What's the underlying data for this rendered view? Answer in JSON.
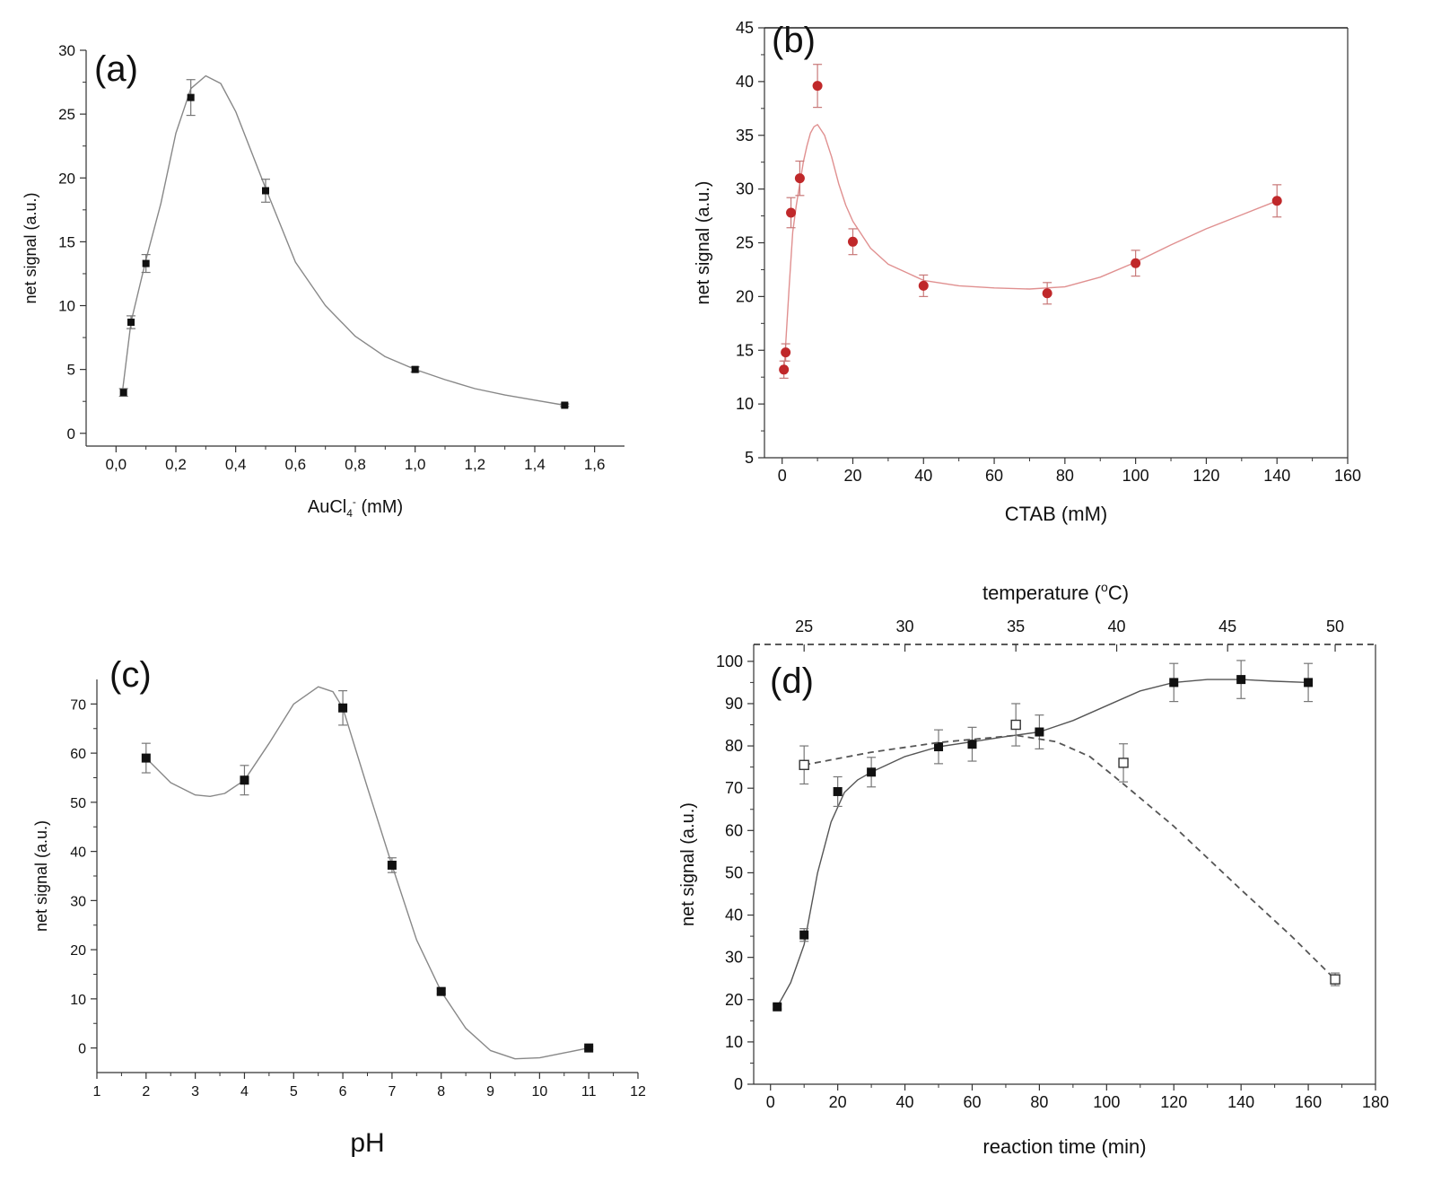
{
  "chart_data": [
    {
      "type": "scatter",
      "panel_label": "(a)",
      "xlabel": "AuCl",
      "xlabel_sub": "4",
      "xlabel_sup": "-",
      "xlabel_unit": " (mM)",
      "ylabel": "net signal (a.u.)",
      "xlim": [
        -0.1,
        1.7
      ],
      "ylim": [
        -1,
        30
      ],
      "x_ticks": [
        0.0,
        0.2,
        0.4,
        0.6,
        0.8,
        1.0,
        1.2,
        1.4,
        1.6
      ],
      "x_tick_labels": [
        "0,0",
        "0,2",
        "0,4",
        "0,6",
        "0,8",
        "1,0",
        "1,2",
        "1,4",
        "1,6"
      ],
      "y_ticks": [
        0,
        5,
        10,
        15,
        20,
        25,
        30
      ],
      "y_tick_labels": [
        "0",
        "5",
        "10",
        "15",
        "20",
        "25",
        "30"
      ],
      "colors": {
        "marker": "#111111",
        "line": "#888888",
        "error": "#777777"
      },
      "series": [
        {
          "marker": "square",
          "x": [
            0.025,
            0.05,
            0.1,
            0.25,
            0.5,
            1.0,
            1.5
          ],
          "y": [
            3.2,
            8.7,
            13.3,
            26.3,
            19.0,
            5.0,
            2.2
          ],
          "err": [
            0.3,
            0.5,
            0.7,
            1.4,
            0.9,
            0.2,
            0.1
          ],
          "fit_x": [
            0.02,
            0.05,
            0.1,
            0.15,
            0.2,
            0.25,
            0.3,
            0.35,
            0.4,
            0.5,
            0.6,
            0.7,
            0.8,
            0.9,
            1.0,
            1.1,
            1.2,
            1.3,
            1.4,
            1.5
          ],
          "fit_y": [
            3.0,
            8.7,
            13.6,
            18.0,
            23.5,
            27.0,
            28.0,
            27.4,
            25.2,
            19.2,
            13.4,
            10.0,
            7.6,
            6.0,
            5.0,
            4.2,
            3.5,
            3.0,
            2.6,
            2.2
          ]
        }
      ]
    },
    {
      "type": "scatter",
      "panel_label": "(b)",
      "xlabel": "CTAB (mM)",
      "ylabel": "net signal (a.u.)",
      "xlim": [
        -5,
        160
      ],
      "ylim": [
        5,
        45
      ],
      "x_ticks": [
        0,
        20,
        40,
        60,
        80,
        100,
        120,
        140,
        160
      ],
      "x_tick_labels": [
        "0",
        "20",
        "40",
        "60",
        "80",
        "100",
        "120",
        "140",
        "160"
      ],
      "y_ticks": [
        5,
        10,
        15,
        20,
        25,
        30,
        35,
        40,
        45
      ],
      "y_tick_labels": [
        "5",
        "10",
        "15",
        "20",
        "25",
        "30",
        "35",
        "40",
        "45"
      ],
      "colors": {
        "marker": "#c0282a",
        "line": "#e09090",
        "error": "#c87878"
      },
      "series": [
        {
          "marker": "circle",
          "x": [
            0.5,
            1,
            2.5,
            5,
            10,
            20,
            40,
            75,
            100,
            140
          ],
          "y": [
            13.2,
            14.8,
            27.8,
            31.0,
            39.6,
            25.1,
            21.0,
            20.3,
            23.1,
            28.9
          ],
          "err": [
            0.8,
            0.8,
            1.4,
            1.6,
            2.0,
            1.2,
            1.0,
            1.0,
            1.2,
            1.5
          ],
          "fit_x": [
            0.5,
            1,
            2,
            3,
            4,
            5,
            6,
            7,
            8,
            9,
            10,
            12,
            14,
            16,
            18,
            20,
            25,
            30,
            40,
            50,
            60,
            70,
            80,
            90,
            100,
            110,
            120,
            130,
            140
          ],
          "fit_y": [
            13.0,
            15.5,
            21.0,
            26.0,
            28.5,
            30.5,
            32.5,
            34.0,
            35.2,
            35.8,
            36.0,
            35.0,
            33.0,
            30.5,
            28.5,
            27.0,
            24.5,
            23.0,
            21.5,
            21.0,
            20.8,
            20.7,
            20.9,
            21.8,
            23.2,
            24.8,
            26.3,
            27.6,
            28.9
          ]
        }
      ]
    },
    {
      "type": "scatter",
      "panel_label": "(c)",
      "xlabel": "pH",
      "ylabel": "net signal (a.u.)",
      "xlim": [
        1,
        12
      ],
      "ylim": [
        -5,
        75
      ],
      "x_ticks": [
        1,
        2,
        3,
        4,
        5,
        6,
        7,
        8,
        9,
        10,
        11,
        12
      ],
      "x_tick_labels": [
        "1",
        "2",
        "3",
        "4",
        "5",
        "6",
        "7",
        "8",
        "9",
        "10",
        "11",
        "12"
      ],
      "y_ticks": [
        0,
        10,
        20,
        30,
        40,
        50,
        60,
        70
      ],
      "y_tick_labels": [
        "0",
        "10",
        "20",
        "30",
        "40",
        "50",
        "60",
        "70"
      ],
      "colors": {
        "marker": "#111111",
        "line": "#888888",
        "error": "#777777"
      },
      "series": [
        {
          "marker": "square",
          "x": [
            2,
            4,
            6,
            7,
            8,
            11
          ],
          "y": [
            59,
            54.5,
            69.2,
            37.2,
            11.5,
            0
          ],
          "err": [
            3,
            3,
            3.5,
            1.5,
            0.5,
            0.3
          ],
          "fit_x": [
            2,
            2.5,
            3,
            3.3,
            3.6,
            4,
            4.5,
            5,
            5.5,
            5.8,
            6,
            6.5,
            7,
            7.5,
            8,
            8.5,
            9,
            9.5,
            10,
            10.5,
            11
          ],
          "fit_y": [
            59,
            54,
            51.5,
            51.2,
            51.8,
            54.5,
            62,
            70,
            73.5,
            72.5,
            69.2,
            53,
            37.2,
            22,
            11.5,
            4,
            -0.5,
            -2.2,
            -2.0,
            -1.0,
            0
          ]
        }
      ]
    },
    {
      "type": "scatter",
      "panel_label": "(d)",
      "xlabel": "reaction time (min)",
      "ylabel": "net signal (a.u.)",
      "top_xlabel": "temperature (",
      "top_xlabel_sup": "o",
      "top_xlabel_end": "C)",
      "xlim": [
        -5,
        180
      ],
      "ylim": [
        0,
        104
      ],
      "x_ticks": [
        0,
        20,
        40,
        60,
        80,
        100,
        120,
        140,
        160,
        180
      ],
      "x_tick_labels": [
        "0",
        "20",
        "40",
        "60",
        "80",
        "100",
        "120",
        "140",
        "160",
        "180"
      ],
      "y_ticks": [
        0,
        10,
        20,
        30,
        40,
        50,
        60,
        70,
        80,
        90,
        100
      ],
      "y_tick_labels": [
        "0",
        "10",
        "20",
        "30",
        "40",
        "50",
        "60",
        "70",
        "80",
        "90",
        "100"
      ],
      "top_ticks": [
        25,
        30,
        35,
        40,
        45,
        50
      ],
      "top_tick_labels": [
        "25",
        "30",
        "35",
        "40",
        "45",
        "50"
      ],
      "top_tick_positions_time": [
        10,
        40,
        73,
        103,
        136,
        168
      ],
      "colors": {
        "marker": "#111111",
        "line": "#555555",
        "error": "#777777"
      },
      "series": [
        {
          "marker": "square",
          "x": [
            2,
            10,
            20,
            30,
            50,
            60,
            80,
            120,
            140,
            160
          ],
          "y": [
            18.3,
            35.3,
            69.2,
            73.8,
            79.8,
            80.4,
            83.3,
            95.0,
            95.7,
            95.0
          ],
          "err": [
            0.5,
            1.5,
            3.5,
            3.5,
            4,
            4,
            4,
            4.5,
            4.5,
            4.5
          ],
          "fit_x": [
            2,
            6,
            10,
            14,
            18,
            22,
            26,
            30,
            40,
            50,
            60,
            70,
            80,
            90,
            100,
            110,
            120,
            130,
            140,
            150,
            160
          ],
          "fit_y": [
            18.3,
            24,
            33,
            50,
            62,
            69,
            72,
            73.8,
            77.5,
            79.8,
            81,
            82.2,
            83.3,
            86,
            89.5,
            93,
            95,
            95.7,
            95.7,
            95.3,
            95.0
          ]
        },
        {
          "marker": "open-square",
          "dashed": true,
          "x": [
            10,
            73,
            105,
            168
          ],
          "y": [
            75.5,
            85,
            76,
            24.8
          ],
          "err": [
            4.5,
            5,
            4.5,
            1.5
          ],
          "fit_x": [
            10,
            30,
            50,
            73,
            85,
            95,
            105,
            120,
            140,
            155,
            168
          ],
          "fit_y": [
            75.5,
            78.5,
            80.8,
            82.5,
            81,
            77.5,
            71,
            61,
            46,
            35,
            24.8
          ]
        }
      ]
    }
  ]
}
